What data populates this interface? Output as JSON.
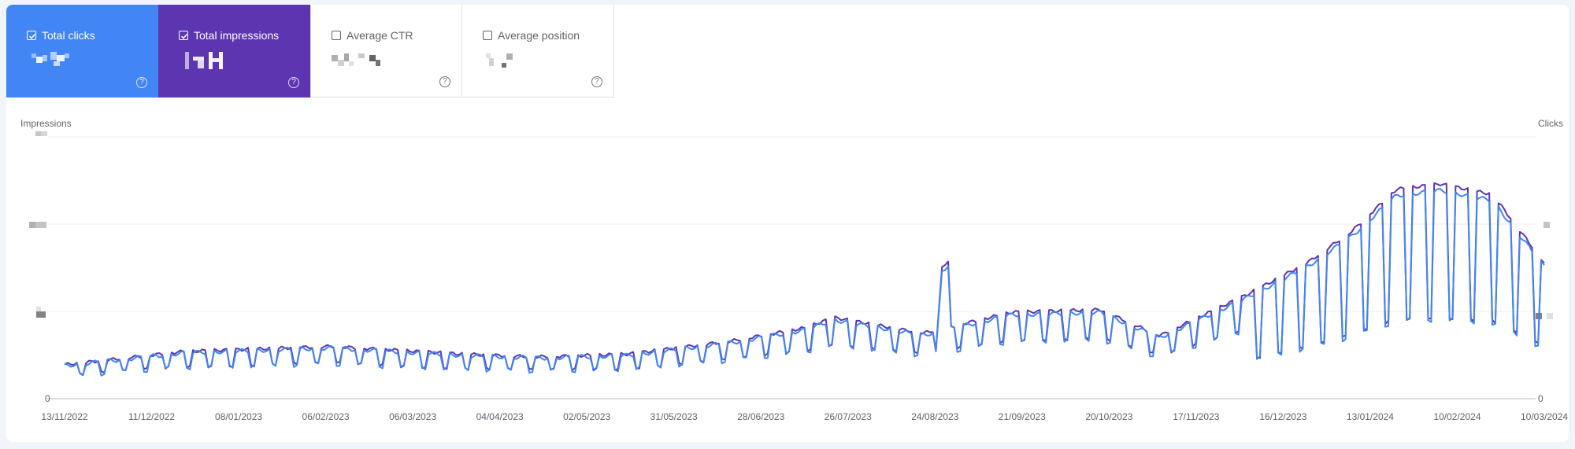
{
  "tiles": [
    {
      "label": "Total clicks",
      "checked": true
    },
    {
      "label": "Total impressions",
      "checked": true
    },
    {
      "label": "Average CTR",
      "checked": false
    },
    {
      "label": "Average position",
      "checked": false
    }
  ],
  "colors": {
    "clicks": "#4285f4",
    "impressions": "#5e35b1"
  },
  "chart_data": {
    "type": "line",
    "left_axis_label": "Impressions",
    "right_axis_label": "Clicks",
    "left_zero": "0",
    "right_zero": "0",
    "x_tick_labels": [
      "13/11/2022",
      "11/12/2022",
      "08/01/2023",
      "06/02/2023",
      "06/03/2023",
      "04/04/2023",
      "02/05/2023",
      "31/05/2023",
      "28/06/2023",
      "26/07/2023",
      "24/08/2023",
      "21/09/2023",
      "20/10/2023",
      "17/11/2023",
      "16/12/2023",
      "13/01/2024",
      "10/02/2024",
      "10/03/2024"
    ],
    "y_max": 100,
    "series": [
      {
        "name": "Total clicks",
        "key": "clicks"
      },
      {
        "name": "Total impressions",
        "key": "impressions"
      }
    ]
  }
}
